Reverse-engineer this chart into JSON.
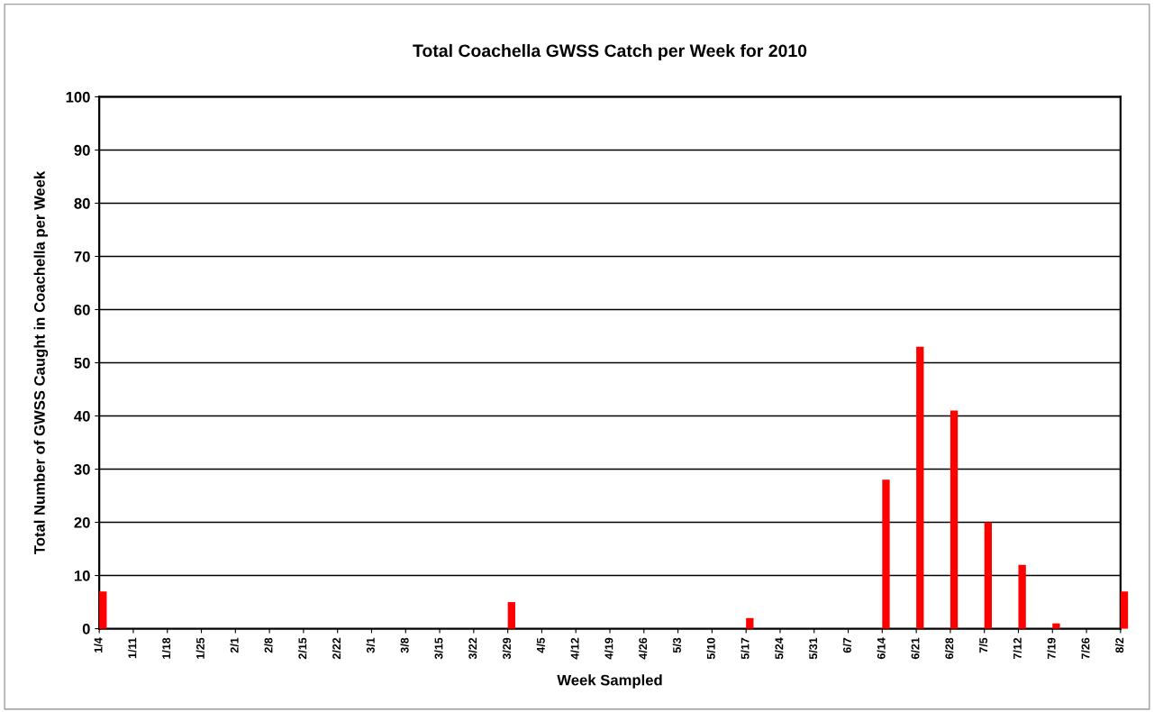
{
  "chart_data": {
    "type": "bar",
    "title": "Total Coachella GWSS Catch per Week for 2010",
    "xlabel": "Week Sampled",
    "ylabel": "Total Number of GWSS Caught in Coachella per Week",
    "categories": [
      "1/4",
      "1/11",
      "1/18",
      "1/25",
      "2/1",
      "2/8",
      "2/15",
      "2/22",
      "3/1",
      "3/8",
      "3/15",
      "3/22",
      "3/29",
      "4/5",
      "4/12",
      "4/19",
      "4/26",
      "5/3",
      "5/10",
      "5/17",
      "5/24",
      "5/31",
      "6/7",
      "6/14",
      "6/21",
      "6/28",
      "7/5",
      "7/12",
      "7/19",
      "7/26",
      "8/2"
    ],
    "values": [
      7,
      0,
      0,
      0,
      0,
      0,
      0,
      0,
      0,
      0,
      0,
      0,
      5,
      0,
      0,
      0,
      0,
      0,
      0,
      2,
      0,
      0,
      0,
      28,
      53,
      41,
      20,
      12,
      1,
      0,
      7
    ],
    "color": "#ff0000",
    "ylim": [
      0,
      100
    ],
    "yticks": [
      0,
      10,
      20,
      30,
      40,
      50,
      60,
      70,
      80,
      90,
      100
    ],
    "grid": "y"
  }
}
